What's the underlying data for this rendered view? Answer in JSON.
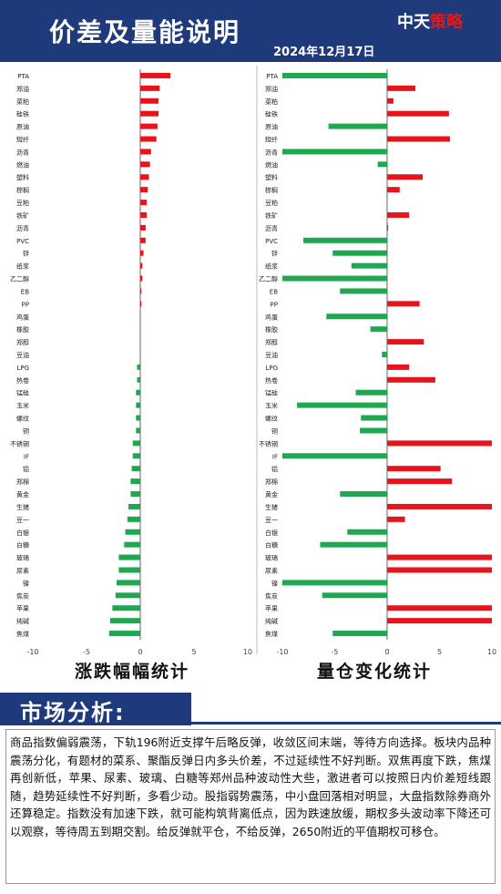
{
  "header": {
    "title": "价差及量能说明",
    "date": "2024年12月17日",
    "brand_a": "中天",
    "brand_b": "策略"
  },
  "left_chart_title": "涨跌幅幅统计",
  "right_chart_title": "量仓变化统计",
  "section_title": "市场分析:",
  "analysis_text": "商品指数偏弱震荡，下轨196附近支撑午后略反弹，收敛区间末端，等待方向选择。板块内品种震荡分化，有题材的菜系、聚酯反弹日内多头价差，不过延续性不好判断。双焦再度下跌，焦煤再创新低，苹果、尿素、玻璃、白糖等郑州品种波动性大些，激进者可以按照日内价差短线跟随，趋势延续性不好判断，多看少动。股指弱势震荡，中小盘回落相对明显，大盘指数除券商外还算稳定。指数没有加速下跌，就可能构筑背离低点，因为跌速放缓，期权多头波动率下降还可以观察，等待周五到期交割。给反弹就平仓，不给反弹，2650附近的平值期权可移仓。",
  "colors": {
    "up": "#e8141c",
    "down": "#1fa84f",
    "header": "#1f3a7a"
  },
  "chart_data": [
    {
      "type": "bar",
      "orientation": "horizontal",
      "xlim": [
        -10,
        10
      ],
      "xticks": [
        -10,
        -5,
        0,
        5,
        10
      ],
      "categories": [
        "PTA",
        "郑油",
        "菜粕",
        "硅铁",
        "原油",
        "短纤",
        "沥青",
        "燃油",
        "塑料",
        "棕榈",
        "豆粕",
        "铁矿",
        "沥青",
        "PVC",
        "锌",
        "纸浆",
        "乙二醇",
        "EB",
        "PP",
        "鸡蛋",
        "橡胶",
        "郑醇",
        "豆油",
        "LPG",
        "热卷",
        "锰硅",
        "玉米",
        "螺纹",
        "铜",
        "不锈钢",
        "IF",
        "铝",
        "郑棉",
        "黄金",
        "生猪",
        "豆一",
        "白银",
        "白糖",
        "玻璃",
        "尿素",
        "镍",
        "焦炭",
        "苹果",
        "纯碱",
        "焦煤"
      ],
      "values": [
        2.8,
        1.8,
        1.7,
        1.7,
        1.6,
        1.5,
        1.0,
        0.9,
        0.8,
        0.7,
        0.6,
        0.6,
        0.5,
        0.5,
        0.3,
        0.2,
        0.2,
        0.1,
        0.1,
        0,
        0,
        0,
        0,
        -0.3,
        -0.3,
        -0.4,
        -0.4,
        -0.4,
        -0.4,
        -0.7,
        -0.7,
        -0.8,
        -0.9,
        -0.9,
        -1.1,
        -1.2,
        -1.4,
        -1.5,
        -2.0,
        -2.0,
        -2.2,
        -2.3,
        -2.6,
        -2.8,
        -2.9
      ]
    },
    {
      "type": "bar",
      "orientation": "horizontal",
      "xlim": [
        -10,
        10
      ],
      "xticks": [
        -10,
        -5,
        0,
        5,
        10
      ],
      "categories": [
        "PTA",
        "郑油",
        "菜粕",
        "硅铁",
        "原油",
        "短纤",
        "沥青",
        "燃油",
        "塑料",
        "棕榈",
        "豆粕",
        "铁矿",
        "沥青",
        "PVC",
        "锌",
        "纸浆",
        "乙二醇",
        "EB",
        "PP",
        "鸡蛋",
        "橡胶",
        "郑醇",
        "豆油",
        "LPG",
        "热卷",
        "锰硅",
        "玉米",
        "螺纹",
        "铜",
        "不锈钢",
        "IF",
        "铝",
        "郑棉",
        "黄金",
        "生猪",
        "豆一",
        "白银",
        "白糖",
        "玻璃",
        "尿素",
        "镍",
        "焦炭",
        "苹果",
        "纯碱",
        "焦煤"
      ],
      "values": [
        -10,
        2.7,
        0.6,
        5.9,
        -5.6,
        6.0,
        -10,
        -0.9,
        3.4,
        1.2,
        0,
        2.1,
        0.1,
        -8.0,
        -5.2,
        -3.4,
        -10,
        -4.5,
        3.1,
        -5.8,
        -1.6,
        3.5,
        -0.5,
        2.1,
        4.6,
        -3.0,
        -8.6,
        -2.5,
        -2.6,
        10,
        -10,
        5.1,
        6.2,
        -4.5,
        10,
        1.7,
        -3.8,
        -6.4,
        10,
        10,
        -10,
        -6.2,
        10,
        10,
        -5.2
      ]
    }
  ]
}
